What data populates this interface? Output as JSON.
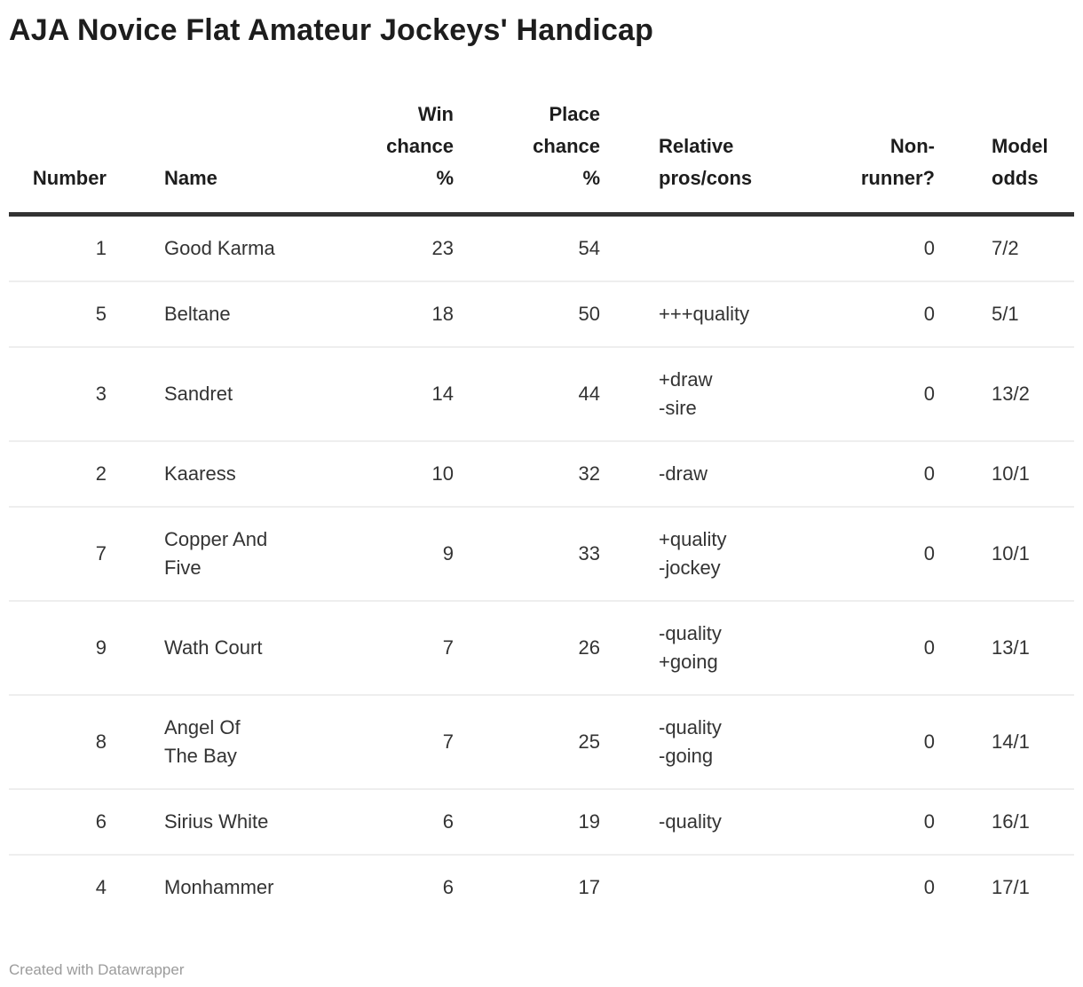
{
  "title": "AJA Novice Flat Amateur Jockeys' Handicap",
  "footer": {
    "attribution": "Created with Datawrapper"
  },
  "colors": {
    "header_rule": "#333333",
    "row_divider": "#eeeeee",
    "title_text": "#1d1d1d",
    "body_text": "#333333",
    "footer_text": "#9b9b9b"
  },
  "chart_data": {
    "type": "table",
    "title": "AJA Novice Flat Amateur Jockeys' Handicap",
    "columns": [
      {
        "key": "number",
        "label": "Number",
        "align": "right"
      },
      {
        "key": "name",
        "label": "Name",
        "align": "left"
      },
      {
        "key": "win",
        "label": "Win\nchance\n%",
        "align": "right"
      },
      {
        "key": "place",
        "label": "Place\nchance\n%",
        "align": "right"
      },
      {
        "key": "proscons",
        "label": "Relative\npros/cons",
        "align": "left"
      },
      {
        "key": "nonrunner",
        "label": "Non-\nrunner?",
        "align": "right"
      },
      {
        "key": "odds",
        "label": "Model\nodds",
        "align": "left"
      }
    ],
    "rows": [
      {
        "number": "1",
        "name": "Good Karma",
        "win": "23",
        "place": "54",
        "proscons": "",
        "nonrunner": "0",
        "odds": "7/2"
      },
      {
        "number": "5",
        "name": "Beltane",
        "win": "18",
        "place": "50",
        "proscons": "+++quality",
        "nonrunner": "0",
        "odds": "5/1"
      },
      {
        "number": "3",
        "name": "Sandret",
        "win": "14",
        "place": "44",
        "proscons": "+draw\n-sire",
        "nonrunner": "0",
        "odds": "13/2"
      },
      {
        "number": "2",
        "name": "Kaaress",
        "win": "10",
        "place": "32",
        "proscons": "-draw",
        "nonrunner": "0",
        "odds": "10/1"
      },
      {
        "number": "7",
        "name": "Copper And\nFive",
        "win": "9",
        "place": "33",
        "proscons": "+quality\n-jockey",
        "nonrunner": "0",
        "odds": "10/1"
      },
      {
        "number": "9",
        "name": "Wath Court",
        "win": "7",
        "place": "26",
        "proscons": "-quality\n+going",
        "nonrunner": "0",
        "odds": "13/1"
      },
      {
        "number": "8",
        "name": "Angel Of\nThe Bay",
        "win": "7",
        "place": "25",
        "proscons": "-quality\n-going",
        "nonrunner": "0",
        "odds": "14/1"
      },
      {
        "number": "6",
        "name": "Sirius White",
        "win": "6",
        "place": "19",
        "proscons": "-quality",
        "nonrunner": "0",
        "odds": "16/1"
      },
      {
        "number": "4",
        "name": "Monhammer",
        "win": "6",
        "place": "17",
        "proscons": "",
        "nonrunner": "0",
        "odds": "17/1"
      }
    ]
  }
}
